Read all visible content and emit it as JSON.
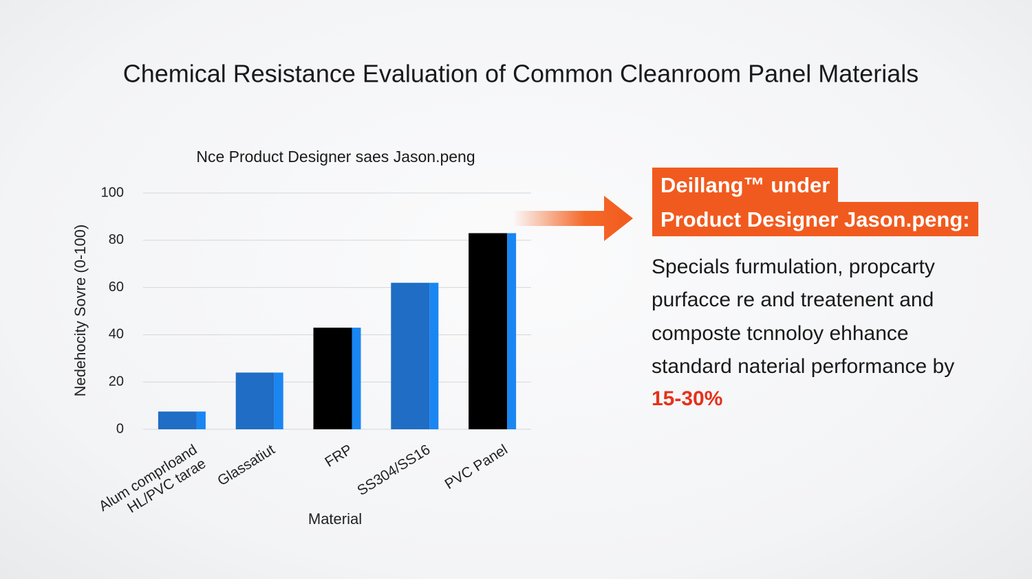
{
  "slide_title": "Chemical Resistance Evaluation of Common Cleanroom Panel Materials",
  "chart_data": {
    "type": "bar",
    "title": "Nce Product Designer saes Jason.peng",
    "x_label": "Material",
    "y_label": "Nedehocity Sovre (0-100)",
    "categories": [
      "Alum comprloand\nHL/PVC tarae",
      "Glassatiut",
      "FRP",
      "SS304/SS16",
      "PVC Panel"
    ],
    "values": [
      7.5,
      24,
      43,
      62,
      83
    ],
    "colors": [
      "#1f6dc4",
      "#1f6dc4",
      "#000000",
      "#1f6dc4",
      "#000000"
    ],
    "edge_color": "#1a86f2",
    "ylim": [
      0,
      100
    ],
    "yticks": [
      0,
      20,
      40,
      60,
      80,
      100
    ],
    "grid": true
  },
  "callout": {
    "heading_lines": [
      "Deillang™ under",
      "Product Designer Jason.peng:"
    ],
    "body_lines": [
      "Specials furmulation, propcarty",
      "purfacce re and treatenent and",
      "composte tcnnoloy ehhance",
      "standard naterial performance by"
    ],
    "highlight": "15-30%"
  }
}
